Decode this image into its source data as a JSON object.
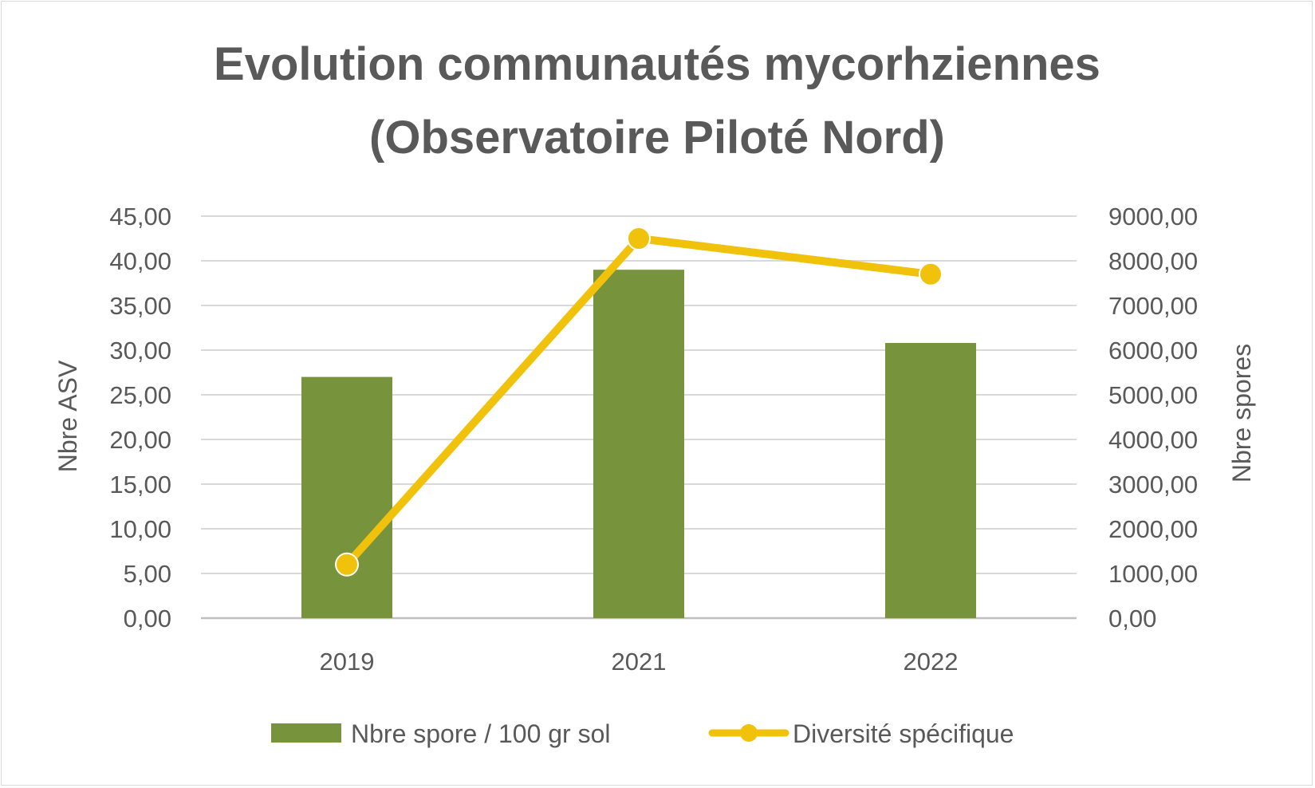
{
  "chart_data": {
    "type": "bar+line",
    "title_lines": [
      "Evolution communautés mycorhziennes",
      "(Observatoire Piloté Nord)"
    ],
    "categories": [
      "2019",
      "2021",
      "2022"
    ],
    "series": [
      {
        "name": "Nbre spore / 100 gr sol",
        "type": "bar",
        "axis": "left",
        "color": "#77933c",
        "values": [
          27.0,
          39.0,
          30.8
        ]
      },
      {
        "name": "Diversité spécifique",
        "type": "line",
        "axis": "right",
        "color": "#f0c20c",
        "values": [
          1200,
          8500,
          7700
        ]
      }
    ],
    "y_left": {
      "label": "Nbre ASV",
      "min": 0,
      "max": 45,
      "step": 5,
      "tick_labels": [
        "0,00",
        "5,00",
        "10,00",
        "15,00",
        "20,00",
        "25,00",
        "30,00",
        "35,00",
        "40,00",
        "45,00"
      ]
    },
    "y_right": {
      "label": "Nbre spores",
      "min": 0,
      "max": 9000,
      "step": 1000,
      "tick_labels": [
        "0,00",
        "1000,00",
        "2000,00",
        "3000,00",
        "4000,00",
        "5000,00",
        "6000,00",
        "7000,00",
        "8000,00",
        "9000,00"
      ]
    },
    "grid": true,
    "legend_position": "bottom",
    "gridline_color": "#d9d9d9",
    "text_color": "#595959"
  }
}
